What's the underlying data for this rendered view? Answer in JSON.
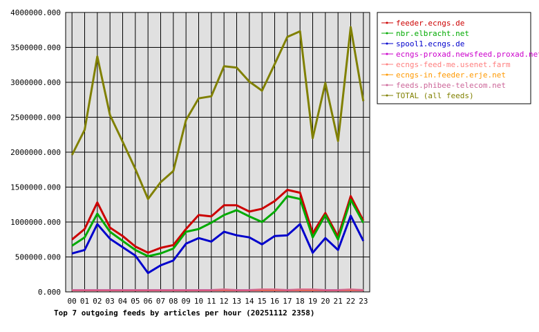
{
  "chart_data": {
    "type": "line",
    "title": "Top 7 outgoing feeds by articles per hour (20251112 2358)",
    "xlabel": "",
    "ylabel": "",
    "ylim": [
      0,
      4000000
    ],
    "yticks": [
      "0.000",
      "500000.000",
      "1000000.000",
      "1500000.000",
      "2000000.000",
      "2500000.000",
      "3000000.000",
      "3500000.000",
      "4000000.000"
    ],
    "ytick_values": [
      0,
      500000,
      1000000,
      1500000,
      2000000,
      2500000,
      3000000,
      3500000,
      4000000
    ],
    "categories": [
      "00",
      "01",
      "02",
      "03",
      "04",
      "05",
      "06",
      "07",
      "08",
      "09",
      "10",
      "11",
      "12",
      "13",
      "14",
      "15",
      "16",
      "17",
      "18",
      "19",
      "20",
      "21",
      "22",
      "23"
    ],
    "grid": true,
    "legend_position": "top-right",
    "series": [
      {
        "name": "feeder.ecngs.de",
        "color": "#cc0000",
        "values": [
          750000,
          900000,
          1280000,
          920000,
          800000,
          650000,
          560000,
          630000,
          670000,
          900000,
          1100000,
          1080000,
          1240000,
          1240000,
          1150000,
          1190000,
          1300000,
          1460000,
          1420000,
          840000,
          1130000,
          790000,
          1370000,
          1020000
        ]
      },
      {
        "name": "nbr.elbracht.net",
        "color": "#00aa00",
        "values": [
          660000,
          780000,
          1120000,
          860000,
          730000,
          600000,
          510000,
          550000,
          620000,
          860000,
          900000,
          990000,
          1100000,
          1170000,
          1080000,
          1000000,
          1150000,
          1370000,
          1330000,
          780000,
          1100000,
          750000,
          1320000,
          990000
        ]
      },
      {
        "name": "spool1.ecngs.de",
        "color": "#0000cc",
        "values": [
          550000,
          600000,
          970000,
          760000,
          640000,
          520000,
          270000,
          380000,
          450000,
          690000,
          770000,
          720000,
          860000,
          810000,
          780000,
          680000,
          800000,
          810000,
          970000,
          560000,
          770000,
          600000,
          1090000,
          730000
        ]
      },
      {
        "name": "ecngs-proxad.newsfeed.proxad.net",
        "color": "#cc00cc",
        "values": [
          20000,
          20000,
          20000,
          20000,
          20000,
          20000,
          20000,
          20000,
          20000,
          20000,
          20000,
          20000,
          20000,
          20000,
          20000,
          20000,
          20000,
          20000,
          20000,
          20000,
          20000,
          20000,
          20000,
          20000
        ]
      },
      {
        "name": "ecngs-feed-me.usenet.farm",
        "color": "#ff8080",
        "values": [
          30000,
          30000,
          30000,
          30000,
          30000,
          30000,
          30000,
          30000,
          30000,
          30000,
          30000,
          30000,
          40000,
          30000,
          30000,
          40000,
          40000,
          30000,
          40000,
          40000,
          30000,
          30000,
          40000,
          30000
        ]
      },
      {
        "name": "ecngs-in.feeder.erje.net",
        "color": "#ff9900",
        "values": [
          25000,
          25000,
          25000,
          25000,
          25000,
          25000,
          25000,
          25000,
          25000,
          25000,
          25000,
          25000,
          25000,
          25000,
          25000,
          25000,
          25000,
          25000,
          25000,
          25000,
          25000,
          25000,
          25000,
          25000
        ]
      },
      {
        "name": "feeds.phibee-telecom.net",
        "color": "#cc6699",
        "values": [
          30000,
          30000,
          30000,
          30000,
          30000,
          30000,
          30000,
          30000,
          30000,
          30000,
          30000,
          30000,
          35000,
          30000,
          30000,
          35000,
          35000,
          30000,
          35000,
          35000,
          30000,
          30000,
          35000,
          30000
        ]
      },
      {
        "name": "TOTAL (all feeds)",
        "color": "#808000",
        "values": [
          1960000,
          2320000,
          3370000,
          2530000,
          2150000,
          1760000,
          1330000,
          1570000,
          1730000,
          2460000,
          2770000,
          2800000,
          3230000,
          3210000,
          3010000,
          2880000,
          3260000,
          3650000,
          3730000,
          2200000,
          2990000,
          2160000,
          3790000,
          2730000
        ]
      }
    ]
  }
}
